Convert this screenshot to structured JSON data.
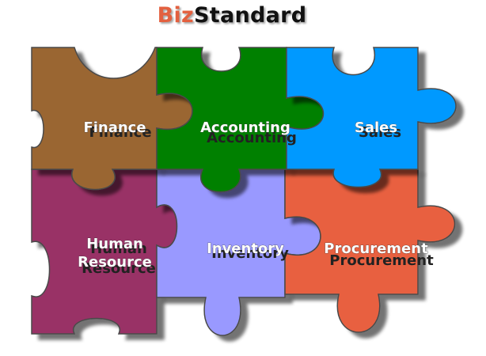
{
  "brand": {
    "part1": "Biz",
    "part2": "Standard",
    "part1_color": "#e3603f",
    "part2_color": "#111111"
  },
  "pieces": [
    {
      "id": "finance",
      "label": "Finance",
      "color": "#9a6633"
    },
    {
      "id": "accounting",
      "label": "Accounting",
      "color": "#008000"
    },
    {
      "id": "sales",
      "label": "Sales",
      "color": "#0099ff"
    },
    {
      "id": "human-resource",
      "label_line1": "Human",
      "label_line2": "Resource",
      "color": "#993366"
    },
    {
      "id": "inventory",
      "label": "Inventory",
      "color": "#9999ff"
    },
    {
      "id": "procurement",
      "label": "Procurement",
      "color": "#e8603f"
    }
  ]
}
